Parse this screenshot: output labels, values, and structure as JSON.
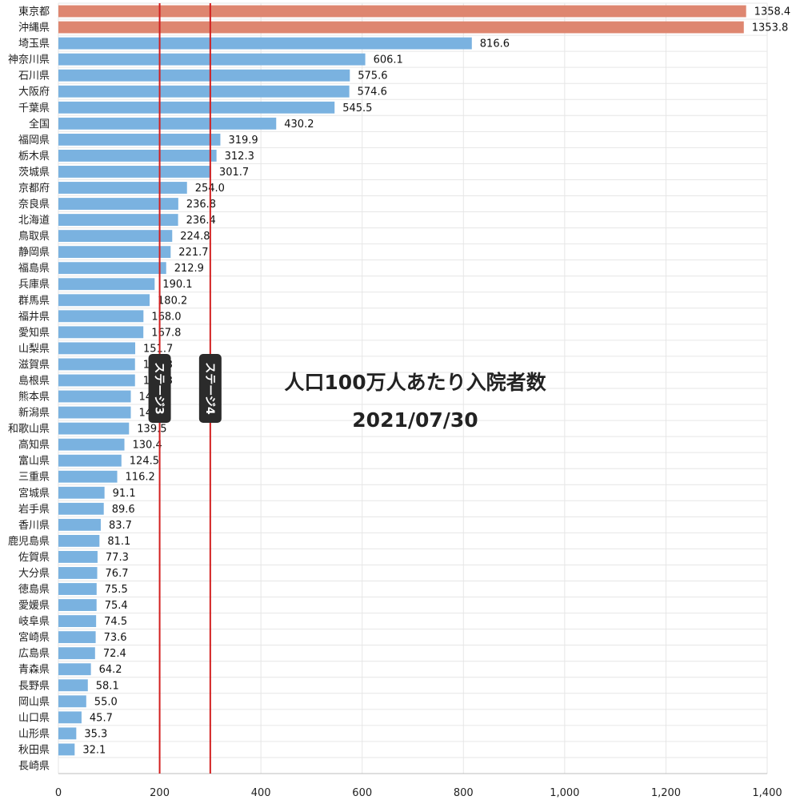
{
  "chart_data": {
    "type": "bar",
    "orientation": "horizontal",
    "title": "人口100万人あたり入院者数",
    "subtitle": "2021/07/30",
    "xlim": [
      0,
      1400
    ],
    "xticks": [
      0,
      200,
      400,
      600,
      800,
      1000,
      1200,
      1400
    ],
    "xtick_labels": [
      "0",
      "200",
      "400",
      "600",
      "800",
      "1,000",
      "1,200",
      "1,400"
    ],
    "grid": true,
    "colors": {
      "highlight": "#de8670",
      "default": "#7ab2e0",
      "line": "#d21f1f",
      "stage_badge": "#2b2b2b"
    },
    "categories": [
      "東京都",
      "沖縄県",
      "埼玉県",
      "神奈川県",
      "石川県",
      "大阪府",
      "千葉県",
      "全国",
      "福岡県",
      "栃木県",
      "茨城県",
      "京都府",
      "奈良県",
      "北海道",
      "鳥取県",
      "静岡県",
      "福島県",
      "兵庫県",
      "群馬県",
      "福井県",
      "愛知県",
      "山梨県",
      "滋賀県",
      "島根県",
      "熊本県",
      "新潟県",
      "和歌山県",
      "高知県",
      "富山県",
      "三重県",
      "宮城県",
      "岩手県",
      "香川県",
      "鹿児島県",
      "佐賀県",
      "大分県",
      "徳島県",
      "愛媛県",
      "岐阜県",
      "宮崎県",
      "広島県",
      "青森県",
      "長野県",
      "岡山県",
      "山口県",
      "山形県",
      "秋田県",
      "長崎県"
    ],
    "values": [
      1358.4,
      1353.8,
      816.6,
      606.1,
      575.6,
      574.6,
      545.5,
      430.2,
      319.9,
      312.3,
      301.7,
      254.0,
      236.8,
      236.4,
      224.8,
      221.7,
      212.9,
      190.1,
      180.2,
      168.0,
      167.8,
      151.7,
      151.3,
      151.3,
      143.0,
      143.0,
      139.5,
      130.4,
      124.5,
      116.2,
      91.1,
      89.6,
      83.7,
      81.1,
      77.3,
      76.7,
      75.5,
      75.4,
      74.5,
      73.6,
      72.4,
      64.2,
      58.1,
      55.0,
      45.7,
      35.3,
      32.1,
      null
    ],
    "value_labels": [
      "1358.4",
      "1353.8",
      "816.6",
      "606.1",
      "575.6",
      "574.6",
      "545.5",
      "430.2",
      "319.9",
      "312.3",
      "301.7",
      "254.0",
      "236.8",
      "236.4",
      "224.8",
      "221.7",
      "212.9",
      "190.1",
      "180.2",
      "168.0",
      "167.8",
      "151.7",
      "151.3",
      "151.3",
      "143.0",
      "143.0",
      "139.5",
      "130.4",
      "124.5",
      "116.2",
      "91.1",
      "89.6",
      "83.7",
      "81.1",
      "77.3",
      "76.7",
      "75.5",
      "75.4",
      "74.5",
      "73.6",
      "72.4",
      "64.2",
      "58.1",
      "55.0",
      "45.7",
      "35.3",
      "32.1",
      ""
    ],
    "highlighted": [
      "東京都",
      "沖縄県"
    ],
    "reference_lines": [
      {
        "value": 200,
        "label": "ステージ3"
      },
      {
        "value": 300,
        "label": "ステージ4"
      }
    ]
  }
}
